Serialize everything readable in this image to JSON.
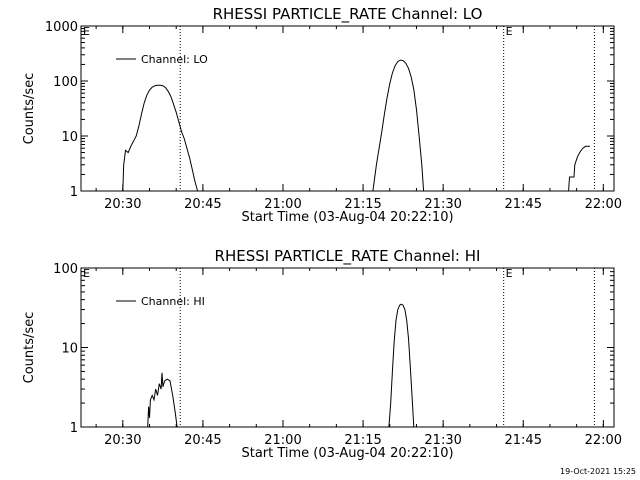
{
  "chart_data": [
    {
      "type": "line",
      "title": "RHESSI PARTICLE_RATE Channel: LO",
      "xlabel": "Start Time (03-Aug-04 20:22:10)",
      "ylabel": "Counts/sec",
      "yscale": "log",
      "ylim": [
        1,
        1000
      ],
      "xlim": [
        "20:22:10",
        "22:02:00"
      ],
      "x_ticks": [
        "20:30",
        "20:45",
        "21:00",
        "21:15",
        "21:30",
        "21:45",
        "22:00"
      ],
      "y_ticks": [
        "1",
        "10",
        "100",
        "1000"
      ],
      "legend": "top-left",
      "color": "#000000",
      "vertical_markers": [
        {
          "time": "20:40:45",
          "label": ""
        },
        {
          "time": "21:41:20",
          "label": "E"
        },
        {
          "time": "21:58:20",
          "label": ""
        }
      ],
      "corner_label": "E",
      "series": [
        {
          "name": "Channel: LO",
          "segments": [
            [
              [
                "20:30:00",
                1
              ],
              [
                "20:30:10",
                3
              ],
              [
                "20:30:30",
                5.5
              ],
              [
                "20:31:00",
                5
              ],
              [
                "20:31:30",
                6.5
              ],
              [
                "20:32:00",
                8
              ],
              [
                "20:32:30",
                10
              ],
              [
                "20:33:00",
                15
              ],
              [
                "20:33:30",
                25
              ],
              [
                "20:34:00",
                40
              ],
              [
                "20:34:30",
                55
              ],
              [
                "20:35:00",
                68
              ],
              [
                "20:35:30",
                77
              ],
              [
                "20:36:00",
                82
              ],
              [
                "20:36:30",
                84
              ],
              [
                "20:37:00",
                84
              ],
              [
                "20:37:30",
                82
              ],
              [
                "20:38:00",
                76
              ],
              [
                "20:38:30",
                65
              ],
              [
                "20:39:00",
                52
              ],
              [
                "20:39:30",
                38
              ],
              [
                "20:40:00",
                27
              ],
              [
                "20:40:30",
                18
              ],
              [
                "20:41:00",
                12
              ],
              [
                "20:41:30",
                9
              ],
              [
                "20:42:00",
                6
              ],
              [
                "20:42:30",
                4
              ],
              [
                "20:43:00",
                2.5
              ],
              [
                "20:43:30",
                1.5
              ],
              [
                "20:44:00",
                1
              ]
            ],
            [
              [
                "21:16:50",
                1
              ],
              [
                "21:17:30",
                3
              ],
              [
                "21:18:00",
                6
              ],
              [
                "21:18:30",
                12
              ],
              [
                "21:19:00",
                25
              ],
              [
                "21:19:30",
                50
              ],
              [
                "21:20:00",
                90
              ],
              [
                "21:20:30",
                140
              ],
              [
                "21:21:00",
                190
              ],
              [
                "21:21:30",
                225
              ],
              [
                "21:22:00",
                240
              ],
              [
                "21:22:30",
                235
              ],
              [
                "21:23:00",
                210
              ],
              [
                "21:23:30",
                170
              ],
              [
                "21:24:00",
                120
              ],
              [
                "21:24:30",
                70
              ],
              [
                "21:25:00",
                30
              ],
              [
                "21:25:30",
                10
              ],
              [
                "21:26:00",
                3
              ],
              [
                "21:26:20",
                1
              ]
            ],
            [
              [
                "21:53:30",
                1
              ],
              [
                "21:53:40",
                1.8
              ],
              [
                "21:54:30",
                1.8
              ],
              [
                "21:54:40",
                3
              ],
              [
                "21:55:10",
                4.2
              ],
              [
                "21:55:40",
                5.2
              ],
              [
                "21:56:10",
                6
              ],
              [
                "21:56:40",
                6.5
              ],
              [
                "21:57:00",
                6.5
              ],
              [
                "21:57:30",
                6.5
              ]
            ]
          ]
        }
      ]
    },
    {
      "type": "line",
      "title": "RHESSI PARTICLE_RATE Channel: HI",
      "xlabel": "Start Time (03-Aug-04 20:22:10)",
      "ylabel": "Counts/sec",
      "yscale": "log",
      "ylim": [
        1,
        100
      ],
      "xlim": [
        "20:22:10",
        "22:02:00"
      ],
      "x_ticks": [
        "20:30",
        "20:45",
        "21:00",
        "21:15",
        "21:30",
        "21:45",
        "22:00"
      ],
      "y_ticks": [
        "1",
        "10",
        "100"
      ],
      "legend": "top-left",
      "color": "#000000",
      "vertical_markers": [
        {
          "time": "20:40:45",
          "label": ""
        },
        {
          "time": "21:41:20",
          "label": "E"
        },
        {
          "time": "21:58:20",
          "label": ""
        }
      ],
      "corner_label": "E",
      "series": [
        {
          "name": "Channel: HI",
          "segments": [
            [
              [
                "20:34:40",
                1
              ],
              [
                "20:34:50",
                1.8
              ],
              [
                "20:35:00",
                1.3
              ],
              [
                "20:35:10",
                2.2
              ],
              [
                "20:35:30",
                2.5
              ],
              [
                "20:35:50",
                2.2
              ],
              [
                "20:36:10",
                3
              ],
              [
                "20:36:30",
                2.5
              ],
              [
                "20:36:50",
                3.5
              ],
              [
                "20:37:10",
                3
              ],
              [
                "20:37:20",
                4.8
              ],
              [
                "20:37:30",
                3.2
              ],
              [
                "20:37:50",
                3.8
              ],
              [
                "20:38:20",
                4
              ],
              [
                "20:38:50",
                3.8
              ],
              [
                "20:39:20",
                2.5
              ],
              [
                "20:39:50",
                1.5
              ],
              [
                "20:40:10",
                1
              ]
            ],
            [
              [
                "21:19:50",
                1
              ],
              [
                "21:20:10",
                2
              ],
              [
                "21:20:30",
                5
              ],
              [
                "21:20:50",
                12
              ],
              [
                "21:21:10",
                22
              ],
              [
                "21:21:30",
                30
              ],
              [
                "21:21:50",
                34
              ],
              [
                "21:22:10",
                35
              ],
              [
                "21:22:30",
                34
              ],
              [
                "21:22:50",
                30
              ],
              [
                "21:23:10",
                22
              ],
              [
                "21:23:30",
                13
              ],
              [
                "21:23:50",
                6
              ],
              [
                "21:24:10",
                2.5
              ],
              [
                "21:24:30",
                1
              ]
            ]
          ]
        }
      ]
    }
  ],
  "footer_timestamp": "19-Oct-2021 15:25"
}
